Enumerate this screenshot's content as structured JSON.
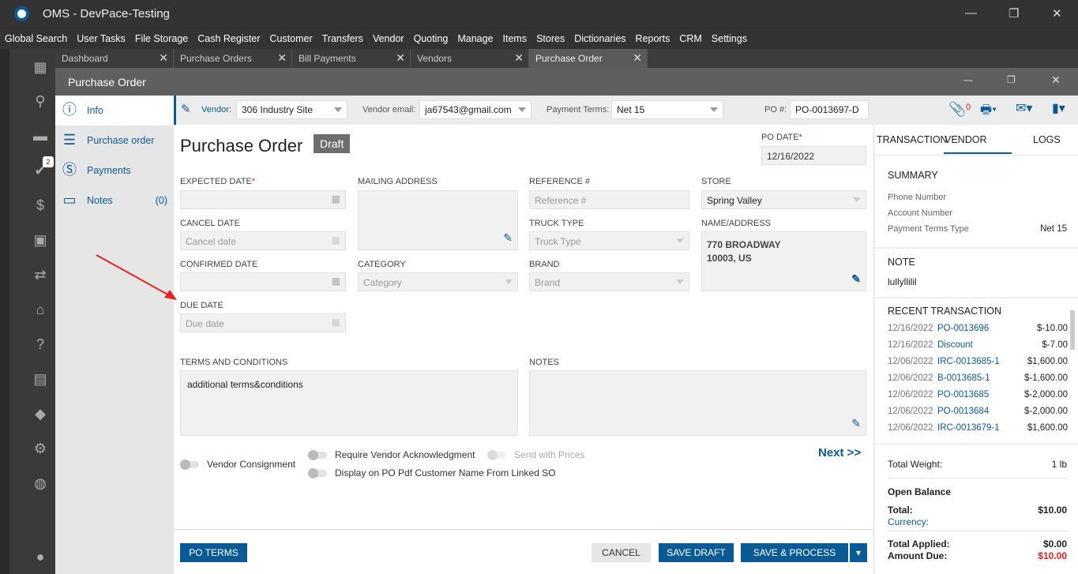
{
  "app": {
    "title": "OMS - DevPace-Testing"
  },
  "menu": [
    "Global Search",
    "User Tasks",
    "File Storage",
    "Cash Register",
    "Customer",
    "Transfers",
    "Vendor",
    "Quoting",
    "Manage",
    "Items",
    "Stores",
    "Dictionaries",
    "Reports",
    "CRM",
    "Settings"
  ],
  "rail": {
    "task_badge": "2"
  },
  "tabs": [
    "Dashboard",
    "Purchase Orders",
    "Bill Payments",
    "Vendors",
    "Purchase Order"
  ],
  "window_title": "Purchase Order",
  "nav": {
    "info": "Info",
    "purchase_order": "Purchase order",
    "payments": "Payments",
    "notes": "Notes",
    "notes_count": "(0)"
  },
  "toolbar": {
    "vendor_label": "Vendor:",
    "vendor": "306 Industry Site",
    "email_label": "Vendor email:",
    "email": "ja67543@gmail.com",
    "terms_label": "Payment Terms:",
    "terms": "Net 15",
    "po_label": "PO #:",
    "po": "PO-0013697-D",
    "attach_count": "0"
  },
  "form": {
    "title": "Purchase Order",
    "status": "Draft",
    "po_date_label": "PO DATE",
    "po_date": "12/16/2022",
    "expected_date": "EXPECTED DATE",
    "cancel_date": "CANCEL DATE",
    "cancel_ph": "Cancel date",
    "confirmed_date": "CONFIRMED DATE",
    "due_date": "DUE DATE",
    "due_ph": "Due date",
    "mailing": "MAILING ADDRESS",
    "category": "CATEGORY",
    "category_ph": "Category",
    "reference": "REFERENCE #",
    "reference_ph": "Reference #",
    "truck": "TRUCK TYPE",
    "truck_ph": "Truck Type",
    "brand": "BRAND",
    "brand_ph": "Brand",
    "store": "STORE",
    "store_val": "Spring Valley",
    "name_addr": "NAME/ADDRESS",
    "addr1": "770 BROADWAY",
    "addr2": "10003, US",
    "terms": "TERMS AND CONDITIONS",
    "terms_val": "additional terms&conditions",
    "notes": "NOTES",
    "t_consign": "Vendor Consignment",
    "t_ack": "Require Vendor Acknowledgment",
    "t_prices": "Send with Prices",
    "t_display": "Display on PO Pdf Customer Name From Linked SO",
    "next": "Next >>"
  },
  "buttons": {
    "po_terms": "PO TERMS",
    "cancel": "CANCEL",
    "save_draft": "SAVE DRAFT",
    "save_process": "SAVE & PROCESS"
  },
  "right": {
    "tabs": [
      "TRANSACTION",
      "VENDOR",
      "LOGS"
    ],
    "summary": "SUMMARY",
    "phone": "Phone Number",
    "account": "Account Number",
    "ptt": "Payment Terms Type",
    "ptt_val": "Net 15",
    "note": "NOTE",
    "note_val": "lullyllilil",
    "recent": "RECENT TRANSACTION",
    "transactions": [
      {
        "date": "12/16/2022",
        "id": "PO-0013696",
        "amount": "$-10.00"
      },
      {
        "date": "12/16/2022",
        "id": "Discount",
        "amount": "$-7.00"
      },
      {
        "date": "12/06/2022",
        "id": "IRC-0013685-1",
        "amount": "$1,600.00"
      },
      {
        "date": "12/06/2022",
        "id": "B-0013685-1",
        "amount": "$-1,600.00"
      },
      {
        "date": "12/06/2022",
        "id": "PO-0013685",
        "amount": "$-2,000.00"
      },
      {
        "date": "12/06/2022",
        "id": "PO-0013684",
        "amount": "$-2,000.00"
      },
      {
        "date": "12/06/2022",
        "id": "IRC-0013679-1",
        "amount": "$1,600.00"
      }
    ],
    "weight_label": "Total Weight:",
    "weight": "1 lb",
    "open_balance": "Open Balance",
    "total_label": "Total:",
    "total": "$10.00",
    "currency": "Currency:",
    "applied_label": "Total Applied:",
    "applied": "$0.00",
    "due_label": "Amount Due:",
    "due": "$10.00"
  },
  "colors": {
    "accent": "#0a5b95",
    "danger": "#e02020",
    "annotation_arrow": "#e82020"
  }
}
